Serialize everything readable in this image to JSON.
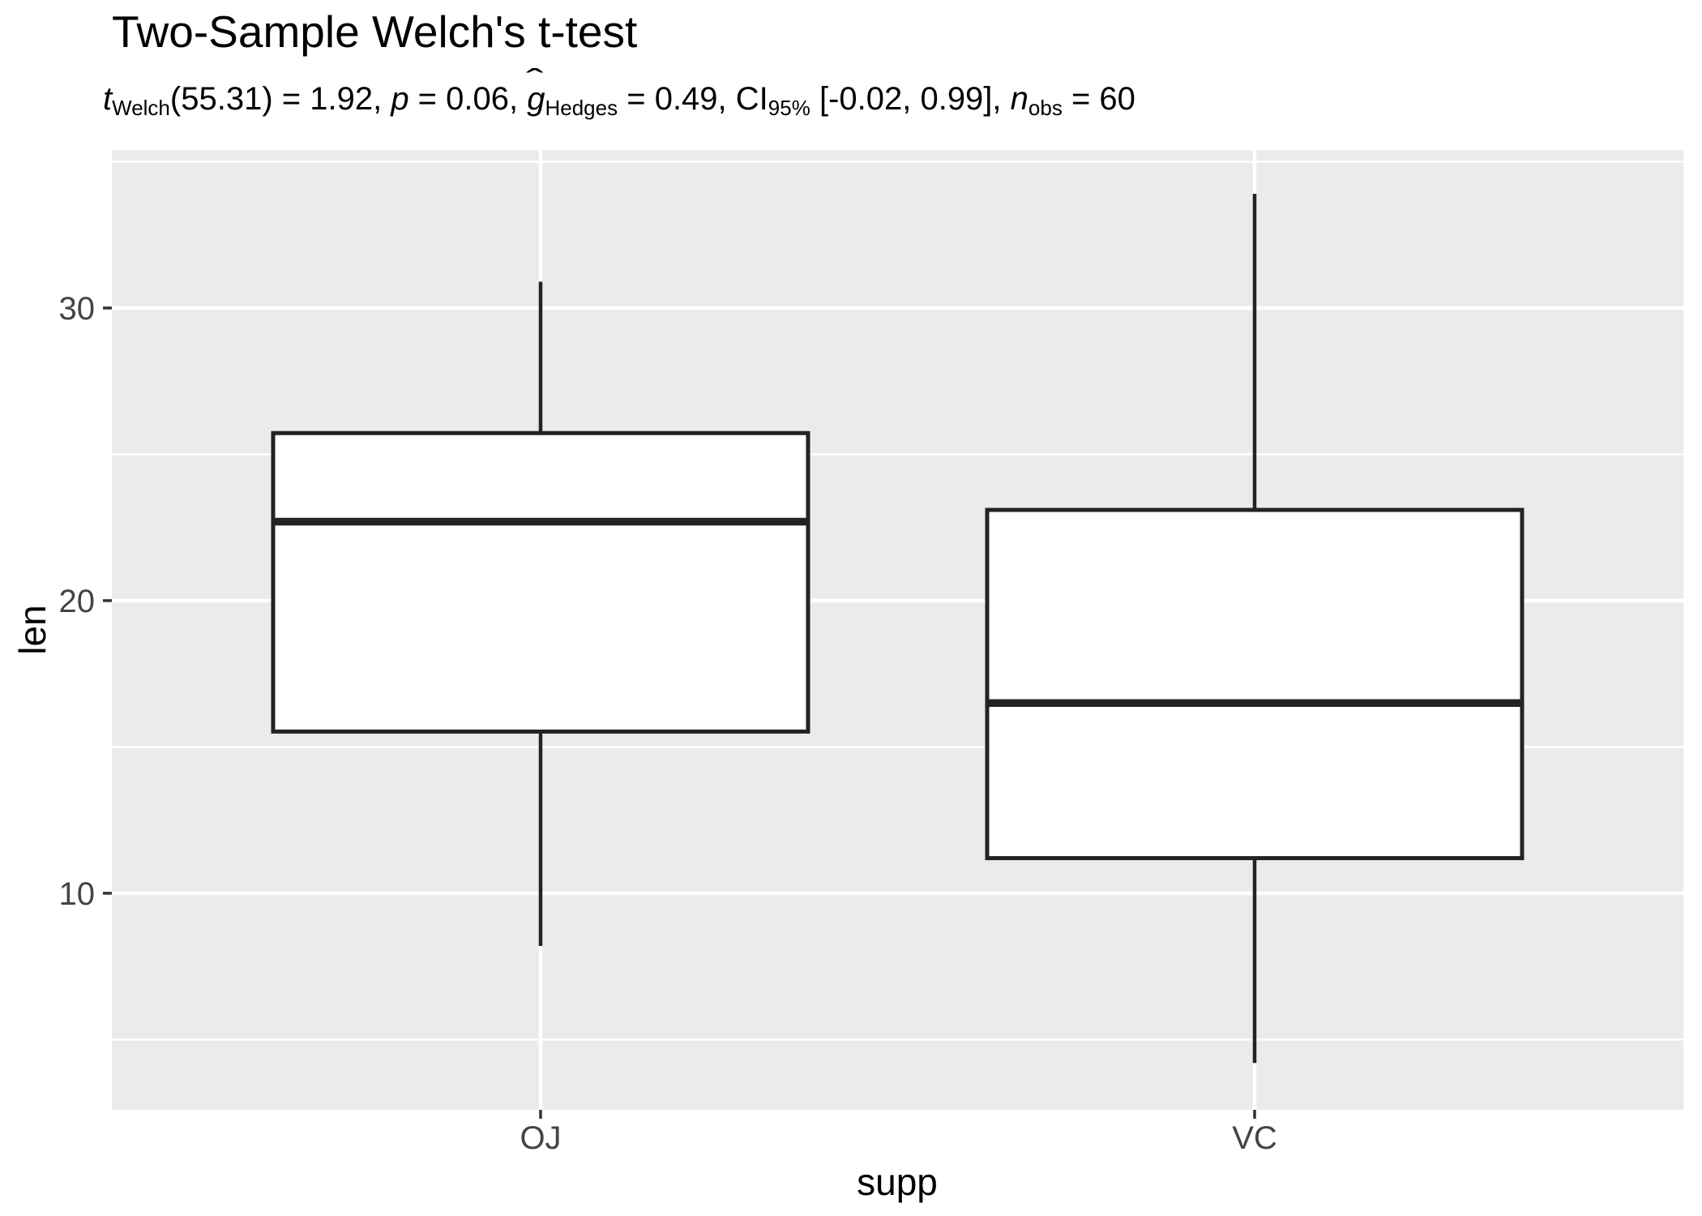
{
  "header": {
    "title": "Two-Sample Welch's t-test",
    "subtitle_plain": "t Welch(55.31) = 1.92, p = 0.06, g Hedges = 0.49, CI 95% [-0.02, 0.99], n obs = 60",
    "subtitle_segments": [
      {
        "text": "t",
        "italic": true
      },
      {
        "text": "Welch",
        "sub": true
      },
      {
        "text": "(55.31) = 1.92, "
      },
      {
        "text": "p",
        "italic": true
      },
      {
        "text": " = 0.06, "
      },
      {
        "text": "g",
        "italic": true,
        "hat": "ˆ"
      },
      {
        "text": "Hedges",
        "sub": true
      },
      {
        "text": " = 0.49, CI"
      },
      {
        "text": "95%",
        "sub": true
      },
      {
        "text": " [-0.02, 0.99], "
      },
      {
        "text": "n",
        "italic": true
      },
      {
        "text": "obs",
        "sub": true
      },
      {
        "text": " = 60"
      }
    ]
  },
  "chart_data": {
    "type": "boxplot",
    "title": "Two-Sample Welch's t-test",
    "subtitle_stats": {
      "t_welch": 1.92,
      "df": 55.31,
      "p": 0.06,
      "g_hedges": 0.49,
      "ci_95": [
        -0.02,
        0.99
      ],
      "n_obs": 60
    },
    "xlabel": "supp",
    "ylabel": "len",
    "categories": [
      "OJ",
      "VC"
    ],
    "series": [
      {
        "name": "OJ",
        "min": 8.2,
        "q1": 15.525,
        "median": 22.7,
        "q3": 25.725,
        "max": 30.9
      },
      {
        "name": "VC",
        "min": 4.2,
        "q1": 11.2,
        "median": 16.5,
        "q3": 23.1,
        "max": 33.9
      }
    ],
    "y_ticks": [
      10,
      20,
      30
    ],
    "y_minor_ticks": [
      5,
      15,
      25,
      35
    ],
    "ylim": [
      2.6,
      35.4
    ],
    "grid": true,
    "legend": "none"
  },
  "colors": {
    "panel_bg": "#EBEBEB",
    "grid_major": "#FFFFFF",
    "grid_minor": "#FFFFFF",
    "box_stroke": "#232323",
    "box_fill": "#FFFFFF",
    "tick_mark": "#333333",
    "tick_label": "#444444",
    "title_text": "#000000"
  }
}
